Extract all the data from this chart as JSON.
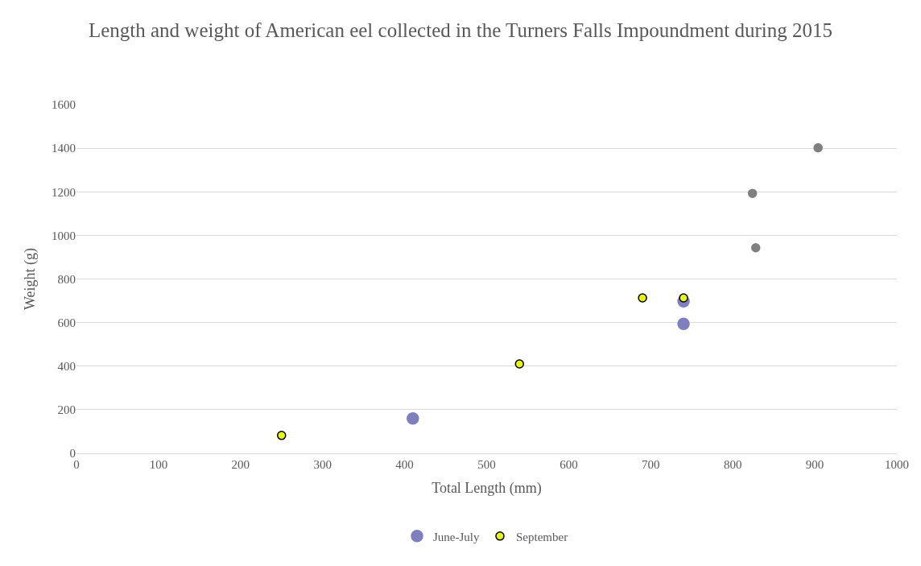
{
  "chart_data": {
    "type": "scatter",
    "title": "Length and weight of American eel collected in the Turners Falls Impoundment during 2015",
    "xlabel": "Total Length (mm)",
    "ylabel": "Weight (g)",
    "xlim": [
      0,
      1000
    ],
    "xticks": [
      0,
      100,
      200,
      300,
      400,
      500,
      600,
      700,
      800,
      900,
      1000
    ],
    "ylim": [
      0,
      1600
    ],
    "yticks": [
      0,
      200,
      400,
      600,
      800,
      1000,
      1200,
      1400,
      1600
    ],
    "grid": "y",
    "legend": "bottom",
    "marker": "circle",
    "series": [
      {
        "name": "June-July",
        "color": "#7f7fbf",
        "x": [
          410,
          740,
          740
        ],
        "values": [
          160,
          594,
          697
        ]
      },
      {
        "name": "September",
        "color": "#e6f516",
        "x": [
          250,
          540,
          690,
          740
        ],
        "values": [
          82,
          410,
          713,
          713
        ]
      },
      {
        "color": "#7f7f7f",
        "x": [
          824,
          828,
          904
        ],
        "values": [
          1193,
          943,
          1402
        ]
      }
    ]
  }
}
